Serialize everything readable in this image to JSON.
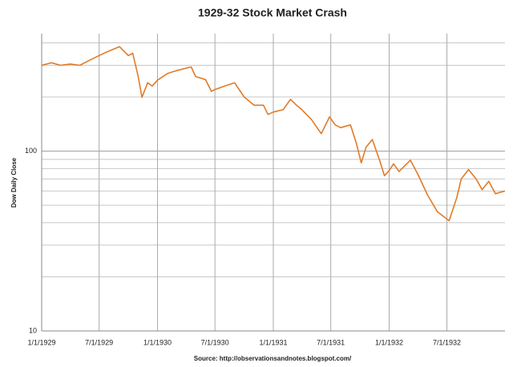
{
  "chart_data": {
    "type": "line",
    "title": "1929-32 Stock Market Crash",
    "y_label": "Dow Daily Close",
    "source": "Source:   http://observationsandnotes.blogspot.com/",
    "log_y": true,
    "grid": true,
    "ylim": [
      10,
      450
    ],
    "yticks": [
      10,
      100
    ],
    "minor_yticks": [
      20,
      30,
      40,
      50,
      60,
      70,
      80,
      90,
      200,
      300,
      400
    ],
    "xlim": [
      "1/1/1929",
      "12/31/1932"
    ],
    "xticks": [
      "1/1/1929",
      "7/1/1929",
      "1/1/1930",
      "7/1/1930",
      "1/1/1931",
      "7/1/1931",
      "1/1/1932",
      "7/1/1932"
    ],
    "series": [
      {
        "name": "Dow Daily Close",
        "color": "#e07b28",
        "x": [
          "1/1/1929",
          "2/1/1929",
          "3/1/1929",
          "4/1/1929",
          "5/1/1929",
          "6/1/1929",
          "7/1/1929",
          "8/1/1929",
          "9/3/1929",
          "10/1/1929",
          "10/15/1929",
          "11/1/1929",
          "11/13/1929",
          "12/1/1929",
          "12/15/1929",
          "1/1/1930",
          "2/1/1930",
          "3/1/1930",
          "4/17/1930",
          "5/1/1930",
          "6/1/1930",
          "6/20/1930",
          "7/1/1930",
          "8/1/1930",
          "9/1/1930",
          "10/1/1930",
          "11/1/1930",
          "12/1/1930",
          "12/15/1930",
          "1/1/1931",
          "2/1/1931",
          "2/24/1931",
          "3/15/1931",
          "4/1/1931",
          "5/1/1931",
          "6/1/1931",
          "6/27/1931",
          "7/15/1931",
          "8/1/1931",
          "9/1/1931",
          "9/20/1931",
          "10/5/1931",
          "10/20/1931",
          "11/9/1931",
          "12/1/1931",
          "12/17/1931",
          "1/1/1932",
          "1/15/1932",
          "2/1/1932",
          "3/8/1932",
          "4/1/1932",
          "5/1/1932",
          "6/1/1932",
          "7/8/1932",
          "8/1/1932",
          "8/15/1932",
          "9/7/1932",
          "10/1/1932",
          "10/20/1932",
          "11/10/1932",
          "12/1/1932",
          "12/31/1932"
        ],
        "values": [
          300,
          310,
          300,
          305,
          300,
          320,
          340,
          360,
          381,
          340,
          350,
          260,
          199,
          240,
          230,
          248,
          270,
          280,
          294,
          260,
          250,
          215,
          220,
          230,
          240,
          200,
          180,
          180,
          160,
          165,
          170,
          194,
          180,
          170,
          150,
          125,
          155,
          140,
          135,
          140,
          110,
          86,
          105,
          116,
          90,
          73,
          78,
          85,
          77,
          89,
          74,
          57,
          46,
          41,
          55,
          70,
          79,
          70,
          61,
          68,
          58,
          60
        ]
      }
    ]
  }
}
